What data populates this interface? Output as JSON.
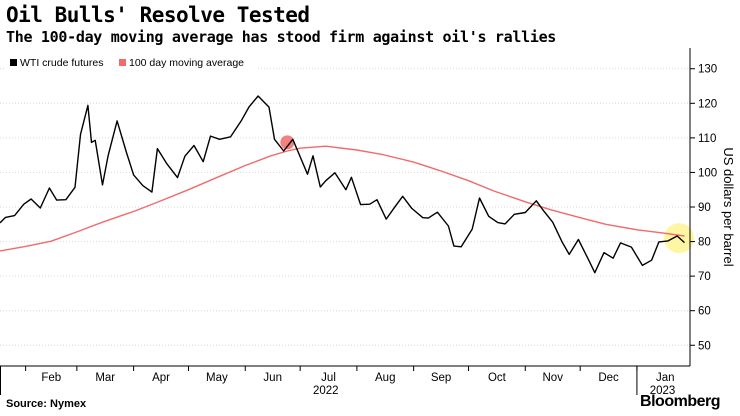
{
  "header": {
    "title": "Oil Bulls' Resolve Tested",
    "subtitle": "The 100-day moving average has stood firm against oil's rallies"
  },
  "footer": {
    "source": "Source: Nymex",
    "brand": "Bloomberg"
  },
  "colors": {
    "wti": "#000000",
    "ma": "#f26a6a",
    "highlight_red": "#f26a6a",
    "highlight_yellow": "#fff59a"
  },
  "chart_data": {
    "type": "line",
    "ylabel": "US dollars per barrel",
    "ylim": [
      44,
      136
    ],
    "yticks": [
      50,
      60,
      70,
      80,
      90,
      100,
      110,
      120,
      130
    ],
    "x_months": [
      "Feb",
      "Mar",
      "Apr",
      "May",
      "Jun",
      "Jul",
      "Aug",
      "Sep",
      "Oct",
      "Nov",
      "Dec",
      "Jan"
    ],
    "x_years": [
      "2022",
      "2023"
    ],
    "grid": "horizontal",
    "legend_position": "top-left",
    "series": [
      {
        "name": "WTI crude futures",
        "x": [
          "2022-01-18",
          "2022-01-21",
          "2022-01-26",
          "2022-01-31",
          "2022-02-04",
          "2022-02-09",
          "2022-02-14",
          "2022-02-18",
          "2022-02-23",
          "2022-02-28",
          "2022-03-03",
          "2022-03-07",
          "2022-03-09",
          "2022-03-11",
          "2022-03-15",
          "2022-03-18",
          "2022-03-23",
          "2022-03-28",
          "2022-04-01",
          "2022-04-06",
          "2022-04-11",
          "2022-04-14",
          "2022-04-19",
          "2022-04-25",
          "2022-04-29",
          "2022-05-04",
          "2022-05-09",
          "2022-05-13",
          "2022-05-18",
          "2022-05-24",
          "2022-05-30",
          "2022-06-03",
          "2022-06-08",
          "2022-06-14",
          "2022-06-17",
          "2022-06-22",
          "2022-06-27",
          "2022-06-30",
          "2022-07-05",
          "2022-07-08",
          "2022-07-12",
          "2022-07-15",
          "2022-07-20",
          "2022-07-26",
          "2022-07-29",
          "2022-08-03",
          "2022-08-08",
          "2022-08-12",
          "2022-08-17",
          "2022-08-22",
          "2022-08-26",
          "2022-08-31",
          "2022-09-06",
          "2022-09-09",
          "2022-09-14",
          "2022-09-20",
          "2022-09-23",
          "2022-09-27",
          "2022-10-03",
          "2022-10-07",
          "2022-10-12",
          "2022-10-17",
          "2022-10-21",
          "2022-10-26",
          "2022-11-01",
          "2022-11-07",
          "2022-11-11",
          "2022-11-16",
          "2022-11-21",
          "2022-11-25",
          "2022-11-30",
          "2022-12-06",
          "2022-12-09",
          "2022-12-14",
          "2022-12-19",
          "2022-12-23",
          "2022-12-29",
          "2023-01-04",
          "2023-01-09",
          "2023-01-13",
          "2023-01-18",
          "2023-01-23",
          "2023-01-27"
        ],
        "values": [
          85.4,
          87.0,
          87.5,
          90.8,
          92.3,
          89.7,
          95.5,
          92.0,
          92.1,
          95.7,
          111.0,
          119.4,
          108.7,
          109.3,
          96.4,
          104.7,
          114.9,
          105.9,
          99.3,
          96.2,
          94.3,
          106.9,
          102.6,
          98.5,
          104.7,
          107.8,
          103.1,
          110.5,
          109.6,
          110.3,
          115.1,
          118.9,
          122.1,
          118.9,
          109.6,
          106.2,
          109.6,
          105.8,
          99.5,
          104.8,
          95.8,
          97.6,
          99.9,
          95.0,
          98.6,
          90.7,
          90.8,
          92.1,
          86.5,
          90.2,
          93.1,
          89.6,
          86.9,
          86.8,
          88.5,
          84.5,
          78.7,
          78.5,
          83.6,
          92.6,
          87.3,
          85.5,
          85.1,
          87.9,
          88.4,
          91.8,
          88.9,
          85.6,
          80.0,
          76.3,
          80.6,
          74.3,
          71.0,
          76.8,
          75.2,
          79.6,
          78.4,
          73.1,
          74.6,
          79.9,
          80.2,
          81.6,
          79.7
        ]
      },
      {
        "name": "100 day moving average",
        "x": [
          "2022-01-18",
          "2022-02-01",
          "2022-02-15",
          "2022-03-01",
          "2022-03-15",
          "2022-04-01",
          "2022-04-15",
          "2022-05-01",
          "2022-05-15",
          "2022-06-01",
          "2022-06-15",
          "2022-06-24",
          "2022-07-01",
          "2022-07-15",
          "2022-08-01",
          "2022-08-15",
          "2022-09-01",
          "2022-09-15",
          "2022-10-01",
          "2022-10-15",
          "2022-11-01",
          "2022-11-15",
          "2022-12-01",
          "2022-12-15",
          "2023-01-01",
          "2023-01-15",
          "2023-01-27"
        ],
        "values": [
          77.3,
          78.6,
          80.1,
          82.8,
          85.6,
          88.7,
          91.6,
          95.0,
          98.2,
          102.0,
          104.8,
          106.2,
          107.0,
          107.6,
          106.5,
          105.2,
          103.0,
          100.6,
          97.6,
          94.6,
          91.5,
          89.2,
          86.9,
          85.0,
          83.4,
          82.5,
          81.6
        ]
      }
    ],
    "annotations": [
      {
        "type": "circle",
        "color": "red",
        "x": "2022-06-24",
        "y": 108.7
      },
      {
        "type": "circle",
        "color": "yellow",
        "x": "2023-01-24",
        "y": 81.0
      }
    ]
  }
}
